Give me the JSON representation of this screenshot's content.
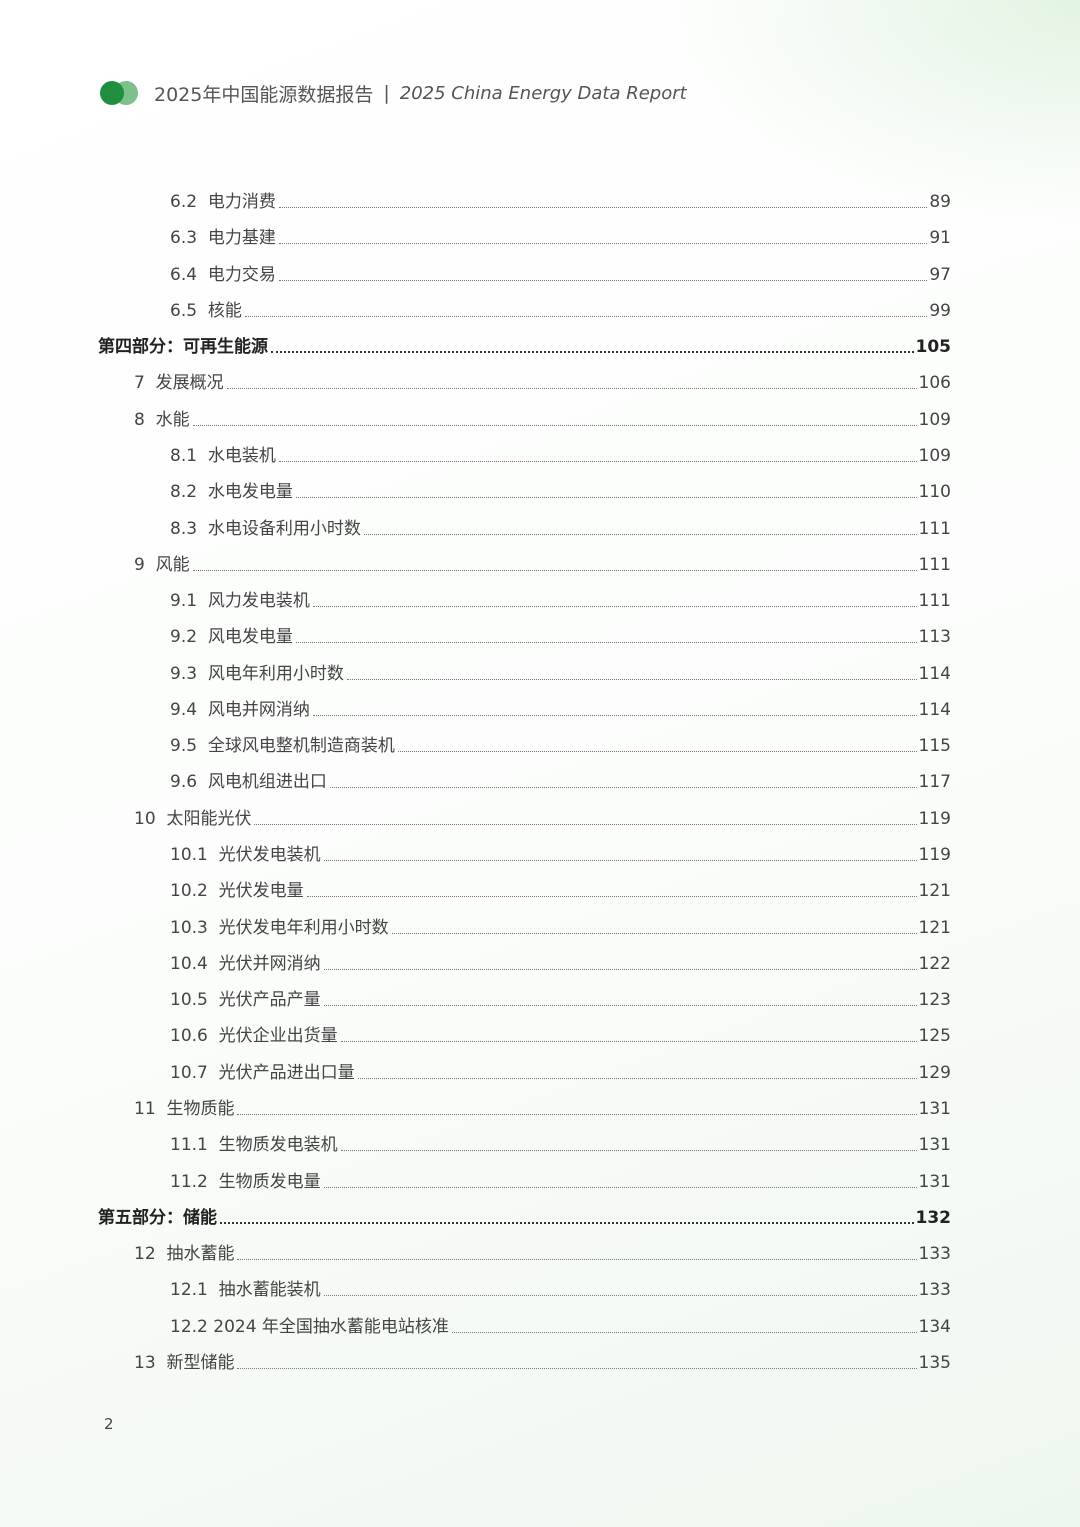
{
  "header": {
    "title_cn": "2025年中国能源数据报告",
    "separator": "|",
    "title_en": "2025 China Energy Data Report",
    "logo_colors": [
      "#1f8f3f",
      "#7cc08a"
    ]
  },
  "toc": [
    {
      "level": 2,
      "label": "6.2  电力消费",
      "page": "89"
    },
    {
      "level": 2,
      "label": "6.3  电力基建",
      "page": "91"
    },
    {
      "level": 2,
      "label": "6.4  电力交易",
      "page": "97"
    },
    {
      "level": 2,
      "label": "6.5  核能",
      "page": "99"
    },
    {
      "level": 0,
      "label": "第四部分：可再生能源",
      "page": "105"
    },
    {
      "level": 1,
      "label": "7  发展概况",
      "page": "106"
    },
    {
      "level": 1,
      "label": "8  水能",
      "page": "109"
    },
    {
      "level": 2,
      "label": "8.1  水电装机",
      "page": "109"
    },
    {
      "level": 2,
      "label": "8.2  水电发电量",
      "page": "110"
    },
    {
      "level": 2,
      "label": "8.3  水电设备利用小时数",
      "page": "111"
    },
    {
      "level": 1,
      "label": "9  风能",
      "page": "111"
    },
    {
      "level": 2,
      "label": "9.1  风力发电装机",
      "page": "111"
    },
    {
      "level": 2,
      "label": "9.2  风电发电量",
      "page": "113"
    },
    {
      "level": 2,
      "label": "9.3  风电年利用小时数",
      "page": "114"
    },
    {
      "level": 2,
      "label": "9.4  风电并网消纳",
      "page": "114"
    },
    {
      "level": 2,
      "label": "9.5  全球风电整机制造商装机",
      "page": "115"
    },
    {
      "level": 2,
      "label": "9.6  风电机组进出口",
      "page": "117"
    },
    {
      "level": 1,
      "label": "10  太阳能光伏",
      "page": "119"
    },
    {
      "level": 2,
      "label": "10.1  光伏发电装机",
      "page": "119"
    },
    {
      "level": 2,
      "label": "10.2  光伏发电量",
      "page": "121"
    },
    {
      "level": 2,
      "label": "10.3  光伏发电年利用小时数",
      "page": "121"
    },
    {
      "level": 2,
      "label": "10.4  光伏并网消纳",
      "page": "122"
    },
    {
      "level": 2,
      "label": "10.5  光伏产品产量",
      "page": "123"
    },
    {
      "level": 2,
      "label": "10.6  光伏企业出货量",
      "page": "125"
    },
    {
      "level": 2,
      "label": "10.7  光伏产品进出口量",
      "page": "129"
    },
    {
      "level": 1,
      "label": "11  生物质能",
      "page": "131"
    },
    {
      "level": 2,
      "label": "11.1  生物质发电装机",
      "page": "131"
    },
    {
      "level": 2,
      "label": "11.2  生物质发电量",
      "page": "131"
    },
    {
      "level": 0,
      "label": "第五部分：储能",
      "page": "132"
    },
    {
      "level": 1,
      "label": "12  抽水蓄能",
      "page": "133"
    },
    {
      "level": 2,
      "label": "12.1  抽水蓄能装机",
      "page": "133"
    },
    {
      "level": 2,
      "label": "12.2 2024 年全国抽水蓄能电站核准",
      "page": "134"
    },
    {
      "level": 1,
      "label": "13  新型储能",
      "page": "135"
    }
  ],
  "page_number": "2"
}
